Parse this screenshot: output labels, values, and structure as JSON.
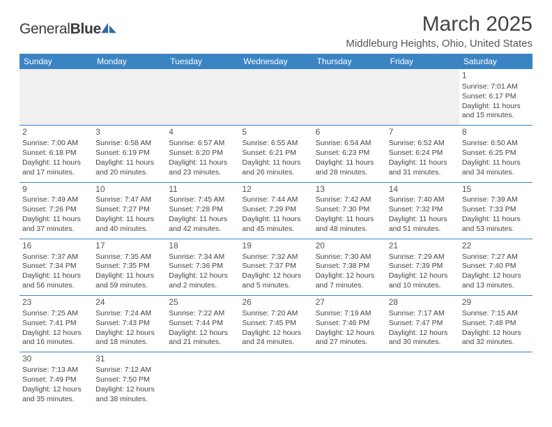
{
  "logo": {
    "textPart1": "General",
    "textPart2": "Blue"
  },
  "header": {
    "title": "March 2025",
    "location": "Middleburg Heights, Ohio, United States"
  },
  "colors": {
    "headerBg": "#3b84c4",
    "headerText": "#ffffff",
    "cellBorder": "#3b84c4",
    "emptyBg": "#f0f0f0",
    "pageBg": "#ffffff",
    "bodyText": "#444444",
    "logoAccent": "#2f6aa8"
  },
  "dayNames": [
    "Sunday",
    "Monday",
    "Tuesday",
    "Wednesday",
    "Thursday",
    "Friday",
    "Saturday"
  ],
  "weeks": [
    [
      null,
      null,
      null,
      null,
      null,
      null,
      {
        "n": "1",
        "sr": "Sunrise: 7:01 AM",
        "ss": "Sunset: 6:17 PM",
        "d1": "Daylight: 11 hours",
        "d2": "and 15 minutes."
      }
    ],
    [
      {
        "n": "2",
        "sr": "Sunrise: 7:00 AM",
        "ss": "Sunset: 6:18 PM",
        "d1": "Daylight: 11 hours",
        "d2": "and 17 minutes."
      },
      {
        "n": "3",
        "sr": "Sunrise: 6:58 AM",
        "ss": "Sunset: 6:19 PM",
        "d1": "Daylight: 11 hours",
        "d2": "and 20 minutes."
      },
      {
        "n": "4",
        "sr": "Sunrise: 6:57 AM",
        "ss": "Sunset: 6:20 PM",
        "d1": "Daylight: 11 hours",
        "d2": "and 23 minutes."
      },
      {
        "n": "5",
        "sr": "Sunrise: 6:55 AM",
        "ss": "Sunset: 6:21 PM",
        "d1": "Daylight: 11 hours",
        "d2": "and 26 minutes."
      },
      {
        "n": "6",
        "sr": "Sunrise: 6:54 AM",
        "ss": "Sunset: 6:23 PM",
        "d1": "Daylight: 11 hours",
        "d2": "and 28 minutes."
      },
      {
        "n": "7",
        "sr": "Sunrise: 6:52 AM",
        "ss": "Sunset: 6:24 PM",
        "d1": "Daylight: 11 hours",
        "d2": "and 31 minutes."
      },
      {
        "n": "8",
        "sr": "Sunrise: 6:50 AM",
        "ss": "Sunset: 6:25 PM",
        "d1": "Daylight: 11 hours",
        "d2": "and 34 minutes."
      }
    ],
    [
      {
        "n": "9",
        "sr": "Sunrise: 7:49 AM",
        "ss": "Sunset: 7:26 PM",
        "d1": "Daylight: 11 hours",
        "d2": "and 37 minutes."
      },
      {
        "n": "10",
        "sr": "Sunrise: 7:47 AM",
        "ss": "Sunset: 7:27 PM",
        "d1": "Daylight: 11 hours",
        "d2": "and 40 minutes."
      },
      {
        "n": "11",
        "sr": "Sunrise: 7:45 AM",
        "ss": "Sunset: 7:28 PM",
        "d1": "Daylight: 11 hours",
        "d2": "and 42 minutes."
      },
      {
        "n": "12",
        "sr": "Sunrise: 7:44 AM",
        "ss": "Sunset: 7:29 PM",
        "d1": "Daylight: 11 hours",
        "d2": "and 45 minutes."
      },
      {
        "n": "13",
        "sr": "Sunrise: 7:42 AM",
        "ss": "Sunset: 7:30 PM",
        "d1": "Daylight: 11 hours",
        "d2": "and 48 minutes."
      },
      {
        "n": "14",
        "sr": "Sunrise: 7:40 AM",
        "ss": "Sunset: 7:32 PM",
        "d1": "Daylight: 11 hours",
        "d2": "and 51 minutes."
      },
      {
        "n": "15",
        "sr": "Sunrise: 7:39 AM",
        "ss": "Sunset: 7:33 PM",
        "d1": "Daylight: 11 hours",
        "d2": "and 53 minutes."
      }
    ],
    [
      {
        "n": "16",
        "sr": "Sunrise: 7:37 AM",
        "ss": "Sunset: 7:34 PM",
        "d1": "Daylight: 11 hours",
        "d2": "and 56 minutes."
      },
      {
        "n": "17",
        "sr": "Sunrise: 7:35 AM",
        "ss": "Sunset: 7:35 PM",
        "d1": "Daylight: 11 hours",
        "d2": "and 59 minutes."
      },
      {
        "n": "18",
        "sr": "Sunrise: 7:34 AM",
        "ss": "Sunset: 7:36 PM",
        "d1": "Daylight: 12 hours",
        "d2": "and 2 minutes."
      },
      {
        "n": "19",
        "sr": "Sunrise: 7:32 AM",
        "ss": "Sunset: 7:37 PM",
        "d1": "Daylight: 12 hours",
        "d2": "and 5 minutes."
      },
      {
        "n": "20",
        "sr": "Sunrise: 7:30 AM",
        "ss": "Sunset: 7:38 PM",
        "d1": "Daylight: 12 hours",
        "d2": "and 7 minutes."
      },
      {
        "n": "21",
        "sr": "Sunrise: 7:29 AM",
        "ss": "Sunset: 7:39 PM",
        "d1": "Daylight: 12 hours",
        "d2": "and 10 minutes."
      },
      {
        "n": "22",
        "sr": "Sunrise: 7:27 AM",
        "ss": "Sunset: 7:40 PM",
        "d1": "Daylight: 12 hours",
        "d2": "and 13 minutes."
      }
    ],
    [
      {
        "n": "23",
        "sr": "Sunrise: 7:25 AM",
        "ss": "Sunset: 7:41 PM",
        "d1": "Daylight: 12 hours",
        "d2": "and 16 minutes."
      },
      {
        "n": "24",
        "sr": "Sunrise: 7:24 AM",
        "ss": "Sunset: 7:43 PM",
        "d1": "Daylight: 12 hours",
        "d2": "and 18 minutes."
      },
      {
        "n": "25",
        "sr": "Sunrise: 7:22 AM",
        "ss": "Sunset: 7:44 PM",
        "d1": "Daylight: 12 hours",
        "d2": "and 21 minutes."
      },
      {
        "n": "26",
        "sr": "Sunrise: 7:20 AM",
        "ss": "Sunset: 7:45 PM",
        "d1": "Daylight: 12 hours",
        "d2": "and 24 minutes."
      },
      {
        "n": "27",
        "sr": "Sunrise: 7:19 AM",
        "ss": "Sunset: 7:46 PM",
        "d1": "Daylight: 12 hours",
        "d2": "and 27 minutes."
      },
      {
        "n": "28",
        "sr": "Sunrise: 7:17 AM",
        "ss": "Sunset: 7:47 PM",
        "d1": "Daylight: 12 hours",
        "d2": "and 30 minutes."
      },
      {
        "n": "29",
        "sr": "Sunrise: 7:15 AM",
        "ss": "Sunset: 7:48 PM",
        "d1": "Daylight: 12 hours",
        "d2": "and 32 minutes."
      }
    ],
    [
      {
        "n": "30",
        "sr": "Sunrise: 7:13 AM",
        "ss": "Sunset: 7:49 PM",
        "d1": "Daylight: 12 hours",
        "d2": "and 35 minutes."
      },
      {
        "n": "31",
        "sr": "Sunrise: 7:12 AM",
        "ss": "Sunset: 7:50 PM",
        "d1": "Daylight: 12 hours",
        "d2": "and 38 minutes."
      },
      null,
      null,
      null,
      null,
      null
    ]
  ]
}
